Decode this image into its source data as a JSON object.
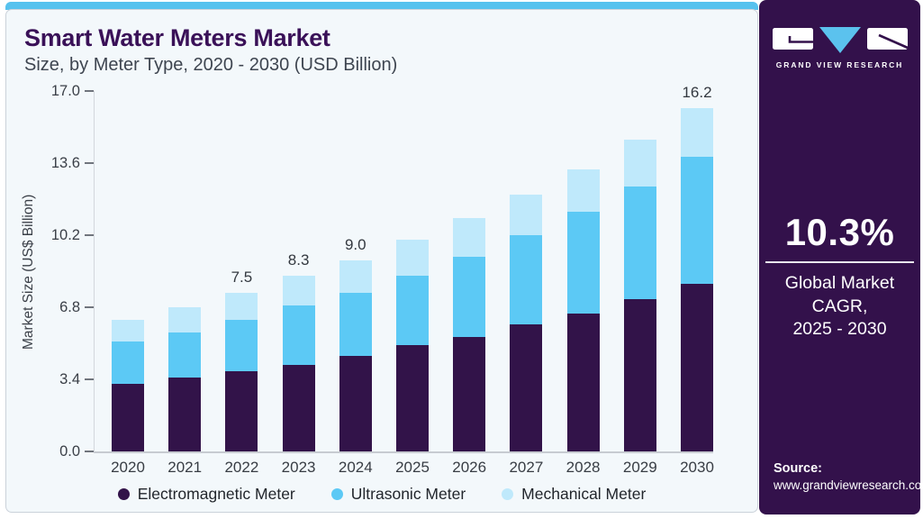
{
  "header": {
    "title": "Smart Water Meters Market",
    "subtitle": "Size, by Meter Type, 2020 - 2030 (USD Billion)"
  },
  "sidebar": {
    "logo_text": "GRAND VIEW RESEARCH",
    "cagr_value": "10.3%",
    "cagr_label_line1": "Global Market CAGR,",
    "cagr_label_line2": "2025 - 2030",
    "source_label": "Source:",
    "source_url": "www.grandviewresearch.com"
  },
  "colors": {
    "accent_bar": "#57C2EE",
    "panel_background": "#F3F8FB",
    "sidebar_background": "#33114B",
    "title_text": "#3A1158",
    "logo_triangle": "#5BC2EE"
  },
  "chart_data": {
    "type": "bar",
    "stacked": true,
    "title": "Smart Water Meters Market Size, by Meter Type, 2020 - 2030 (USD Billion)",
    "categories": [
      "2020",
      "2021",
      "2022",
      "2023",
      "2024",
      "2025",
      "2026",
      "2027",
      "2028",
      "2029",
      "2030"
    ],
    "series": [
      {
        "name": "Electromagnetic Meter",
        "color": "#321349",
        "values": [
          3.2,
          3.5,
          3.8,
          4.1,
          4.5,
          5.0,
          5.4,
          6.0,
          6.5,
          7.2,
          7.9
        ]
      },
      {
        "name": "Ultrasonic Meter",
        "color": "#5CC9F5",
        "values": [
          2.0,
          2.1,
          2.4,
          2.8,
          3.0,
          3.3,
          3.8,
          4.2,
          4.8,
          5.3,
          6.0
        ]
      },
      {
        "name": "Mechanical Meter",
        "color": "#BFE9FB",
        "values": [
          1.0,
          1.2,
          1.3,
          1.4,
          1.5,
          1.7,
          1.8,
          1.9,
          2.0,
          2.2,
          2.3
        ]
      }
    ],
    "bar_labels": [
      null,
      null,
      "7.5",
      "8.3",
      "9.0",
      null,
      null,
      null,
      null,
      null,
      "16.2"
    ],
    "xlabel": "",
    "ylabel": "Market Size (US$ Billion)",
    "yticks": [
      0.0,
      3.4,
      6.8,
      10.2,
      13.6,
      17.0
    ],
    "ylim": [
      0,
      17.0
    ],
    "grid": false,
    "legend_position": "bottom"
  }
}
